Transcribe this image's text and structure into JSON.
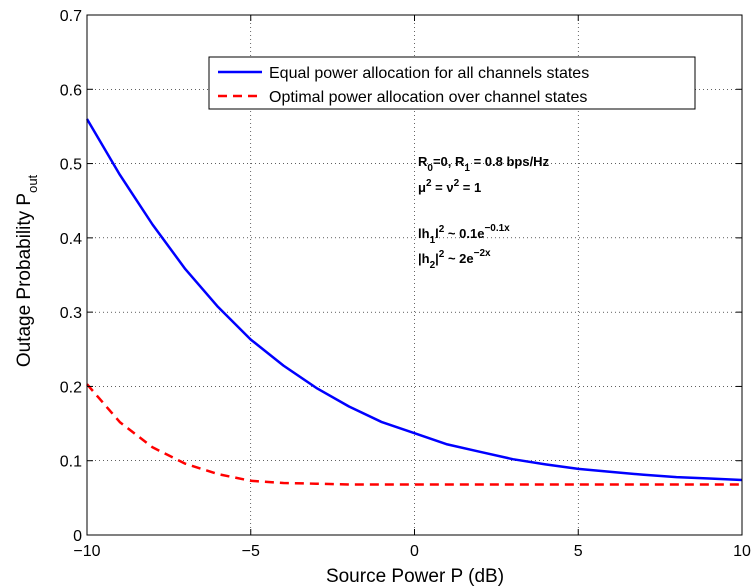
{
  "chart_data": {
    "type": "line",
    "xlabel": "Source Power P (dB)",
    "ylabel": "Outage Probability P",
    "ylabel_subscript": "out",
    "xlim": [
      -10,
      10
    ],
    "ylim": [
      0,
      0.7
    ],
    "x_ticks": [
      -10,
      -5,
      0,
      5,
      10
    ],
    "x_tick_labels": [
      "−10",
      "−5",
      "0",
      "5",
      "10"
    ],
    "y_ticks": [
      0,
      0.1,
      0.2,
      0.3,
      0.4,
      0.5,
      0.6,
      0.7
    ],
    "y_tick_labels": [
      "0",
      "0.1",
      "0.2",
      "0.3",
      "0.4",
      "0.5",
      "0.6",
      "0.7"
    ],
    "grid": true,
    "legend_position": "top-right",
    "x": [
      -10,
      -9,
      -8,
      -7,
      -6,
      -5,
      -4,
      -3,
      -2,
      -1,
      0,
      1,
      2,
      3,
      4,
      5,
      6,
      7,
      8,
      9,
      10
    ],
    "series": [
      {
        "name": "Equal power allocation for all channels states",
        "color": "#0000ff",
        "dash": "solid",
        "values": [
          0.56,
          0.485,
          0.418,
          0.358,
          0.307,
          0.263,
          0.228,
          0.198,
          0.173,
          0.152,
          0.137,
          0.122,
          0.112,
          0.102,
          0.095,
          0.089,
          0.085,
          0.081,
          0.078,
          0.076,
          0.074
        ]
      },
      {
        "name": "Optimal power allocation over channel states",
        "color": "#ff0000",
        "dash": "dashed",
        "values": [
          0.203,
          0.152,
          0.118,
          0.096,
          0.082,
          0.073,
          0.07,
          0.069,
          0.068,
          0.068,
          0.068,
          0.068,
          0.068,
          0.068,
          0.068,
          0.068,
          0.068,
          0.068,
          0.068,
          0.068,
          0.068
        ]
      }
    ],
    "annotations": {
      "line1_a": "R",
      "line1_a_sub": "0",
      "line1_b": "=0, R",
      "line1_b_sub": "1",
      "line1_c": " = 0.8 bps/Hz",
      "line2_a": "μ",
      "line2_a_sup": "2",
      "line2_b": " = ν",
      "line2_b_sup": "2",
      "line2_c": " = 1",
      "line3_a": "lh",
      "line3_a_sub": "1",
      "line3_b": "l",
      "line3_b_sup": "2",
      "line3_c": " ~ 0.1e",
      "line3_c_sup": "−0.1x",
      "line4_a": "|h",
      "line4_a_sub": "2",
      "line4_b": "|",
      "line4_b_sup": "2",
      "line4_c": " ~ 2e",
      "line4_c_sup": "−2x"
    }
  }
}
